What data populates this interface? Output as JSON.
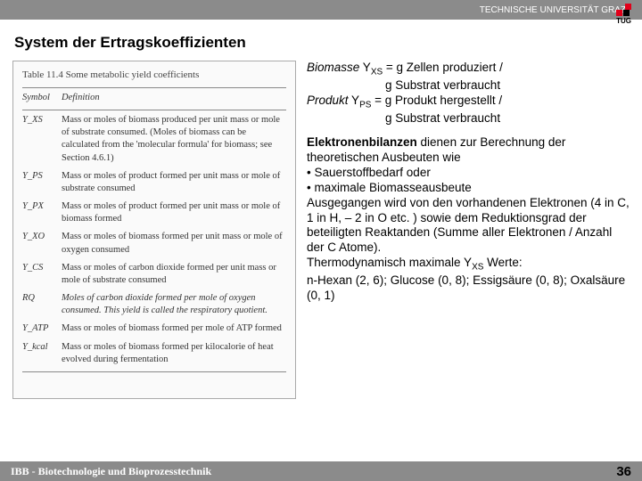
{
  "header": {
    "university": "TECHNISCHE UNIVERSITÄT GRAZ",
    "logo_label": "TUG",
    "logo_colors": {
      "accent": "#e1001a",
      "dark": "#000000"
    }
  },
  "title": "System der Ertragskoeffizienten",
  "table": {
    "caption": "Table 11.4  Some metabolic yield coefficients",
    "head_symbol": "Symbol",
    "head_def": "Definition",
    "rows": [
      {
        "sym": "Y_XS",
        "def": "Mass or moles of biomass produced per unit mass or mole of substrate consumed. (Moles of biomass can be calculated from the 'molecular formula' for biomass; see Section 4.6.1)"
      },
      {
        "sym": "Y_PS",
        "def": "Mass or moles of product formed per unit mass or mole of substrate consumed"
      },
      {
        "sym": "Y_PX",
        "def": "Mass or moles of product formed per unit mass or mole of biomass formed"
      },
      {
        "sym": "Y_XO",
        "def": "Mass or moles of biomass formed per unit mass or mole of oxygen consumed"
      },
      {
        "sym": "Y_CS",
        "def": "Mass or moles of carbon dioxide formed per unit mass or mole of substrate consumed"
      },
      {
        "sym": "RQ",
        "def": "Moles of carbon dioxide formed per mole of oxygen consumed. This yield is called the respiratory quotient."
      },
      {
        "sym": "Y_ATP",
        "def": "Mass or moles of biomass formed per mole of ATP formed"
      },
      {
        "sym": "Y_kcal",
        "def": "Mass or moles of biomass formed per kilocalorie of heat evolved during fermentation"
      }
    ]
  },
  "definitions": {
    "biomasse_label": "Biomasse",
    "biomasse_sym": "Y",
    "biomasse_sub": "XS",
    "biomasse_eq1": " = g Zellen produziert /",
    "biomasse_eq2": "g Substrat verbraucht",
    "produkt_label": "Produkt",
    "produkt_sym": "Y",
    "produkt_sub": "PS",
    "produkt_eq1": " = g Produkt hergestellt /",
    "produkt_eq2": "g Substrat verbraucht"
  },
  "body": {
    "p1a": "Elektronenbilanzen",
    "p1b": " dienen zur Berechnung der theoretischen Ausbeuten wie",
    "b1": "• Sauerstoffbedarf oder",
    "b2": "• maximale Biomasseausbeute",
    "p2": "Ausgegangen wird von den vorhandenen Elektronen (4 in C, 1 in H, – 2 in O etc. ) sowie dem Reduktionsgrad der beteiligten Reaktanden (Summe aller Elektronen / Anzahl der C Atome).",
    "p3a": "Thermodynamisch maximale Y",
    "p3sub": "XS",
    "p3b": " Werte:",
    "p4": "n-Hexan (2, 6); Glucose (0, 8); Essigsäure (0, 8); Oxalsäure (0, 1)"
  },
  "footer": {
    "text": "IBB - Biotechnologie und Bioprozesstechnik",
    "page": "36"
  },
  "colors": {
    "header_bg": "#8b8b8b",
    "footer_bg": "#8b8b8b",
    "text": "#000000",
    "header_text": "#ffffff"
  }
}
